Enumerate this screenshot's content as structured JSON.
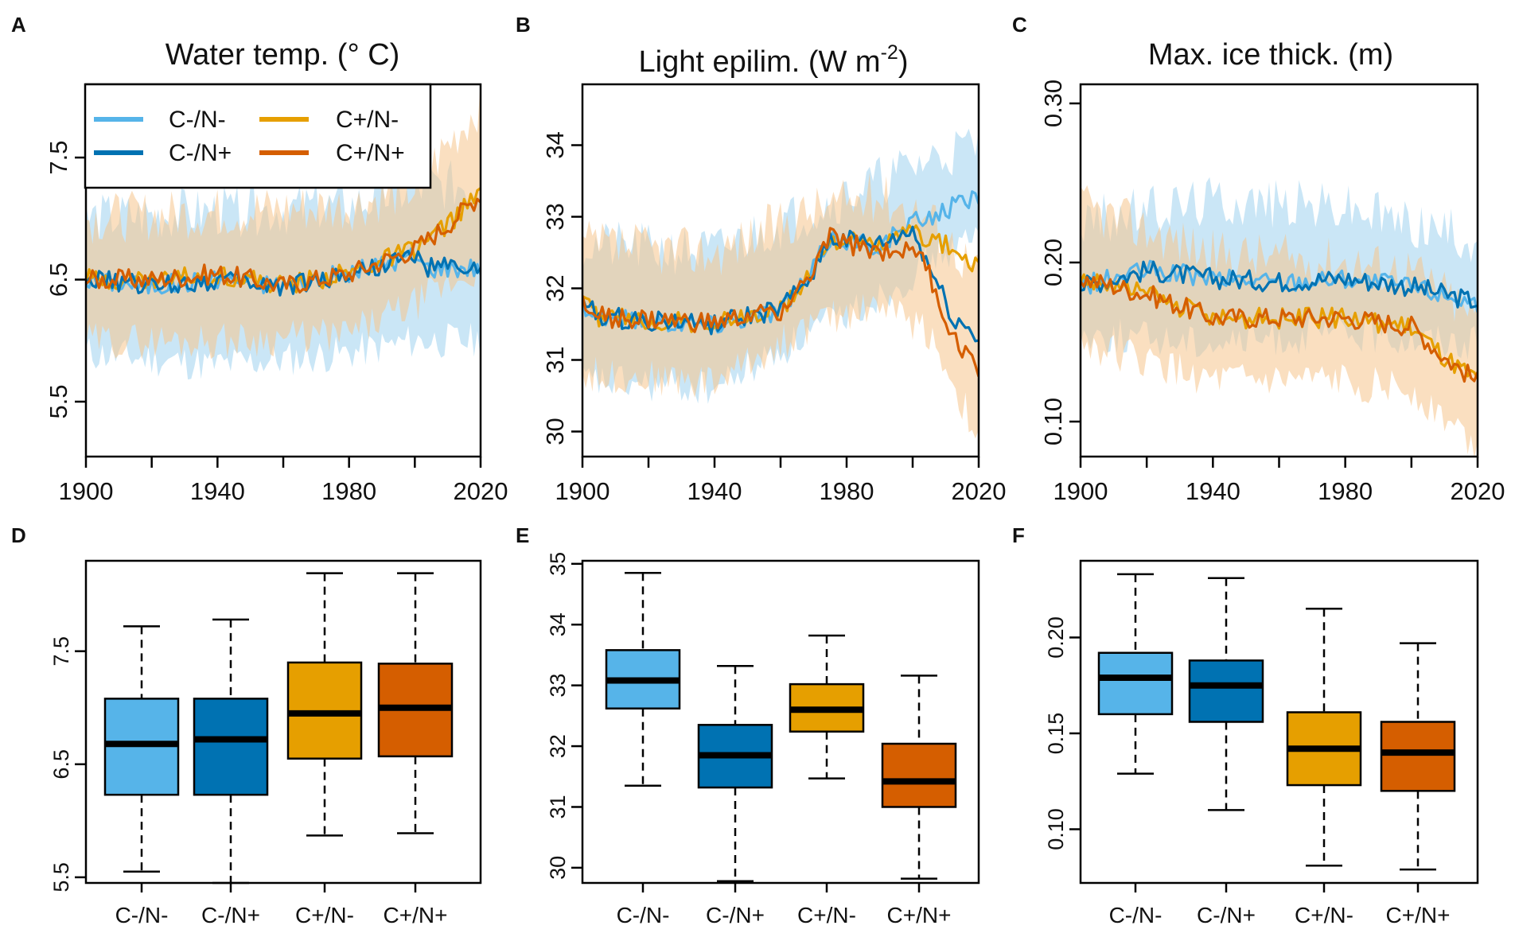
{
  "colors": {
    "C-/N-": "#56B4E9",
    "C-/N+": "#0072B2",
    "C+/N-": "#E69F00",
    "C+/N+": "#D55E00",
    "band_blue": "#9ed2ee",
    "band_orange": "#f5c58d"
  },
  "legend": {
    "items": [
      {
        "label": "C-/N-",
        "color": "#56B4E9"
      },
      {
        "label": "C+/N-",
        "color": "#E69F00"
      },
      {
        "label": "C-/N+",
        "color": "#0072B2"
      },
      {
        "label": "C+/N+",
        "color": "#D55E00"
      }
    ]
  },
  "chart_data": [
    {
      "panel": "A",
      "type": "line",
      "title": "Water temp. (° C)",
      "x_range": [
        1900,
        2020
      ],
      "ylim": [
        5.05,
        8.1
      ],
      "x_ticks": [
        1900,
        1940,
        1980,
        2020
      ],
      "y_ticks": [
        5.5,
        6.5,
        7.5
      ],
      "xlabel": "",
      "ylabel": "",
      "series": [
        {
          "name": "C-/N-",
          "anchors": [
            [
              1900,
              6.5
            ],
            [
              1920,
              6.45
            ],
            [
              1940,
              6.5
            ],
            [
              1960,
              6.45
            ],
            [
              1980,
              6.55
            ],
            [
              2000,
              6.7
            ],
            [
              2003,
              6.6
            ],
            [
              2020,
              6.6
            ]
          ],
          "lo": [
            [
              1900,
              5.9
            ],
            [
              1940,
              5.8
            ],
            [
              1980,
              5.9
            ],
            [
              2000,
              6.0
            ],
            [
              2020,
              6.0
            ]
          ],
          "hi": [
            [
              1900,
              7.0
            ],
            [
              1940,
              7.05
            ],
            [
              1980,
              7.1
            ],
            [
              2000,
              7.25
            ],
            [
              2020,
              7.3
            ]
          ]
        },
        {
          "name": "C-/N+",
          "anchors": [
            [
              1900,
              6.5
            ],
            [
              1920,
              6.45
            ],
            [
              1940,
              6.5
            ],
            [
              1960,
              6.45
            ],
            [
              1980,
              6.55
            ],
            [
              2000,
              6.7
            ],
            [
              2003,
              6.6
            ],
            [
              2020,
              6.6
            ]
          ]
        },
        {
          "name": "C+/N-",
          "anchors": [
            [
              1900,
              6.5
            ],
            [
              1920,
              6.5
            ],
            [
              1940,
              6.55
            ],
            [
              1960,
              6.45
            ],
            [
              1980,
              6.55
            ],
            [
              2000,
              6.75
            ],
            [
              2010,
              6.95
            ],
            [
              2020,
              7.2
            ]
          ]
        },
        {
          "name": "C+/N+",
          "anchors": [
            [
              1900,
              6.5
            ],
            [
              1920,
              6.5
            ],
            [
              1940,
              6.55
            ],
            [
              1960,
              6.45
            ],
            [
              1980,
              6.55
            ],
            [
              2000,
              6.75
            ],
            [
              2010,
              6.95
            ],
            [
              2020,
              7.2
            ]
          ],
          "lo": [
            [
              1900,
              6.0
            ],
            [
              1940,
              6.0
            ],
            [
              1980,
              6.05
            ],
            [
              2000,
              6.3
            ],
            [
              2020,
              6.6
            ]
          ],
          "hi": [
            [
              1900,
              7.0
            ],
            [
              1940,
              7.05
            ],
            [
              1980,
              7.1
            ],
            [
              2000,
              7.25
            ],
            [
              2020,
              7.95
            ]
          ]
        }
      ]
    },
    {
      "panel": "B",
      "type": "line",
      "title": "Light epilim. (W m",
      "title_sup": "-2",
      "title_end": ")",
      "x_range": [
        1900,
        2020
      ],
      "ylim": [
        29.65,
        34.85
      ],
      "x_ticks": [
        1900,
        1940,
        1980,
        2020
      ],
      "y_ticks": [
        30,
        31,
        32,
        33,
        34
      ],
      "xlabel": "",
      "ylabel": "",
      "series": [
        {
          "name": "C-/N-",
          "anchors": [
            [
              1900,
              31.8
            ],
            [
              1905,
              31.6
            ],
            [
              1920,
              31.55
            ],
            [
              1940,
              31.5
            ],
            [
              1960,
              31.7
            ],
            [
              1968,
              32.1
            ],
            [
              1975,
              32.7
            ],
            [
              1990,
              32.6
            ],
            [
              2000,
              32.9
            ],
            [
              2010,
              33.1
            ],
            [
              2020,
              33.3
            ]
          ],
          "lo": [
            [
              1900,
              30.7
            ],
            [
              1940,
              30.6
            ],
            [
              1970,
              31.4
            ],
            [
              1990,
              31.9
            ],
            [
              2010,
              32.5
            ],
            [
              2020,
              32.7
            ]
          ],
          "hi": [
            [
              1900,
              32.6
            ],
            [
              1940,
              32.5
            ],
            [
              1970,
              33.1
            ],
            [
              1990,
              33.5
            ],
            [
              2010,
              33.9
            ],
            [
              2020,
              34.0
            ]
          ]
        },
        {
          "name": "C-/N+",
          "anchors": [
            [
              1900,
              31.8
            ],
            [
              1905,
              31.6
            ],
            [
              1920,
              31.55
            ],
            [
              1940,
              31.5
            ],
            [
              1960,
              31.7
            ],
            [
              1968,
              32.1
            ],
            [
              1975,
              32.7
            ],
            [
              1990,
              32.6
            ],
            [
              2000,
              32.8
            ],
            [
              2005,
              32.3
            ],
            [
              2012,
              31.6
            ],
            [
              2020,
              31.3
            ]
          ]
        },
        {
          "name": "C+/N-",
          "anchors": [
            [
              1900,
              31.8
            ],
            [
              1905,
              31.6
            ],
            [
              1920,
              31.55
            ],
            [
              1940,
              31.5
            ],
            [
              1960,
              31.7
            ],
            [
              1968,
              32.1
            ],
            [
              1975,
              32.7
            ],
            [
              1990,
              32.6
            ],
            [
              2000,
              32.8
            ],
            [
              2010,
              32.6
            ],
            [
              2020,
              32.3
            ]
          ]
        },
        {
          "name": "C+/N+",
          "anchors": [
            [
              1900,
              31.8
            ],
            [
              1905,
              31.6
            ],
            [
              1920,
              31.55
            ],
            [
              1940,
              31.5
            ],
            [
              1960,
              31.7
            ],
            [
              1968,
              32.1
            ],
            [
              1975,
              32.7
            ],
            [
              1990,
              32.5
            ],
            [
              2000,
              32.6
            ],
            [
              2005,
              32.2
            ],
            [
              2012,
              31.3
            ],
            [
              2020,
              30.9
            ]
          ],
          "lo": [
            [
              1900,
              30.8
            ],
            [
              1940,
              30.7
            ],
            [
              1970,
              31.5
            ],
            [
              1990,
              31.8
            ],
            [
              2005,
              31.4
            ],
            [
              2020,
              29.9
            ]
          ],
          "hi": [
            [
              1900,
              32.6
            ],
            [
              1940,
              32.5
            ],
            [
              1970,
              33.1
            ],
            [
              1990,
              33.3
            ],
            [
              2005,
              33.0
            ],
            [
              2020,
              32.2
            ]
          ]
        }
      ]
    },
    {
      "panel": "C",
      "type": "line",
      "title": "Max. ice thick. (m)",
      "x_range": [
        1900,
        2020
      ],
      "ylim": [
        0.078,
        0.312
      ],
      "x_ticks": [
        1900,
        1940,
        1980,
        2020
      ],
      "y_ticks": [
        0.1,
        0.2,
        0.3
      ],
      "xlabel": "",
      "ylabel": "",
      "series": [
        {
          "name": "C-/N-",
          "anchors": [
            [
              1900,
              0.185
            ],
            [
              1920,
              0.195
            ],
            [
              1940,
              0.19
            ],
            [
              1960,
              0.188
            ],
            [
              1980,
              0.19
            ],
            [
              2000,
              0.185
            ],
            [
              2020,
              0.175
            ]
          ],
          "lo": [
            [
              1900,
              0.155
            ],
            [
              1940,
              0.15
            ],
            [
              1980,
              0.155
            ],
            [
              2020,
              0.15
            ]
          ],
          "hi": [
            [
              1900,
              0.225
            ],
            [
              1940,
              0.24
            ],
            [
              1980,
              0.235
            ],
            [
              2020,
              0.215
            ]
          ]
        },
        {
          "name": "C-/N+",
          "anchors": [
            [
              1900,
              0.185
            ],
            [
              1920,
              0.195
            ],
            [
              1940,
              0.19
            ],
            [
              1960,
              0.188
            ],
            [
              1980,
              0.19
            ],
            [
              2000,
              0.185
            ],
            [
              2020,
              0.175
            ]
          ]
        },
        {
          "name": "C+/N-",
          "anchors": [
            [
              1900,
              0.19
            ],
            [
              1920,
              0.18
            ],
            [
              1940,
              0.165
            ],
            [
              1960,
              0.165
            ],
            [
              1980,
              0.165
            ],
            [
              2000,
              0.16
            ],
            [
              2010,
              0.14
            ],
            [
              2020,
              0.125
            ]
          ]
        },
        {
          "name": "C+/N+",
          "anchors": [
            [
              1900,
              0.19
            ],
            [
              1920,
              0.18
            ],
            [
              1940,
              0.165
            ],
            [
              1960,
              0.165
            ],
            [
              1980,
              0.165
            ],
            [
              2000,
              0.16
            ],
            [
              2010,
              0.14
            ],
            [
              2020,
              0.125
            ]
          ],
          "lo": [
            [
              1900,
              0.15
            ],
            [
              1940,
              0.125
            ],
            [
              1980,
              0.125
            ],
            [
              2000,
              0.12
            ],
            [
              2020,
              0.085
            ]
          ],
          "hi": [
            [
              1900,
              0.235
            ],
            [
              1940,
              0.205
            ],
            [
              1980,
              0.2
            ],
            [
              2000,
              0.195
            ],
            [
              2020,
              0.165
            ]
          ]
        }
      ]
    },
    {
      "panel": "D",
      "type": "box",
      "ylim": [
        5.45,
        8.3
      ],
      "y_ticks": [
        5.5,
        6.5,
        7.5
      ],
      "categories": [
        "C-/N-",
        "C-/N+",
        "C+/N-",
        "C+/N+"
      ],
      "boxes": [
        {
          "min": 5.55,
          "q1": 6.23,
          "median": 6.68,
          "q3": 7.08,
          "max": 7.72
        },
        {
          "min": 5.45,
          "q1": 6.23,
          "median": 6.72,
          "q3": 7.08,
          "max": 7.78
        },
        {
          "min": 5.87,
          "q1": 6.55,
          "median": 6.95,
          "q3": 7.4,
          "max": 8.19
        },
        {
          "min": 5.89,
          "q1": 6.57,
          "median": 7.0,
          "q3": 7.39,
          "max": 8.19
        }
      ]
    },
    {
      "panel": "E",
      "type": "box",
      "ylim": [
        29.75,
        35.05
      ],
      "y_ticks": [
        30,
        31,
        32,
        33,
        34,
        35
      ],
      "categories": [
        "C-/N-",
        "C-/N+",
        "C+/N-",
        "C+/N+"
      ],
      "boxes": [
        {
          "min": 31.35,
          "q1": 32.62,
          "median": 33.08,
          "q3": 33.58,
          "max": 34.85
        },
        {
          "min": 29.78,
          "q1": 31.32,
          "median": 31.85,
          "q3": 32.35,
          "max": 33.32
        },
        {
          "min": 31.47,
          "q1": 32.24,
          "median": 32.6,
          "q3": 33.02,
          "max": 33.82
        },
        {
          "min": 29.82,
          "q1": 31.0,
          "median": 31.42,
          "q3": 32.04,
          "max": 33.16
        }
      ]
    },
    {
      "panel": "F",
      "type": "box",
      "ylim": [
        0.072,
        0.24
      ],
      "y_ticks": [
        0.1,
        0.15,
        0.2
      ],
      "categories": [
        "C-/N-",
        "C-/N+",
        "C+/N-",
        "C+/N+"
      ],
      "boxes": [
        {
          "min": 0.129,
          "q1": 0.16,
          "median": 0.179,
          "q3": 0.192,
          "max": 0.233
        },
        {
          "min": 0.11,
          "q1": 0.156,
          "median": 0.175,
          "q3": 0.188,
          "max": 0.231
        },
        {
          "min": 0.081,
          "q1": 0.123,
          "median": 0.142,
          "q3": 0.161,
          "max": 0.215
        },
        {
          "min": 0.079,
          "q1": 0.12,
          "median": 0.14,
          "q3": 0.156,
          "max": 0.197
        }
      ]
    }
  ]
}
